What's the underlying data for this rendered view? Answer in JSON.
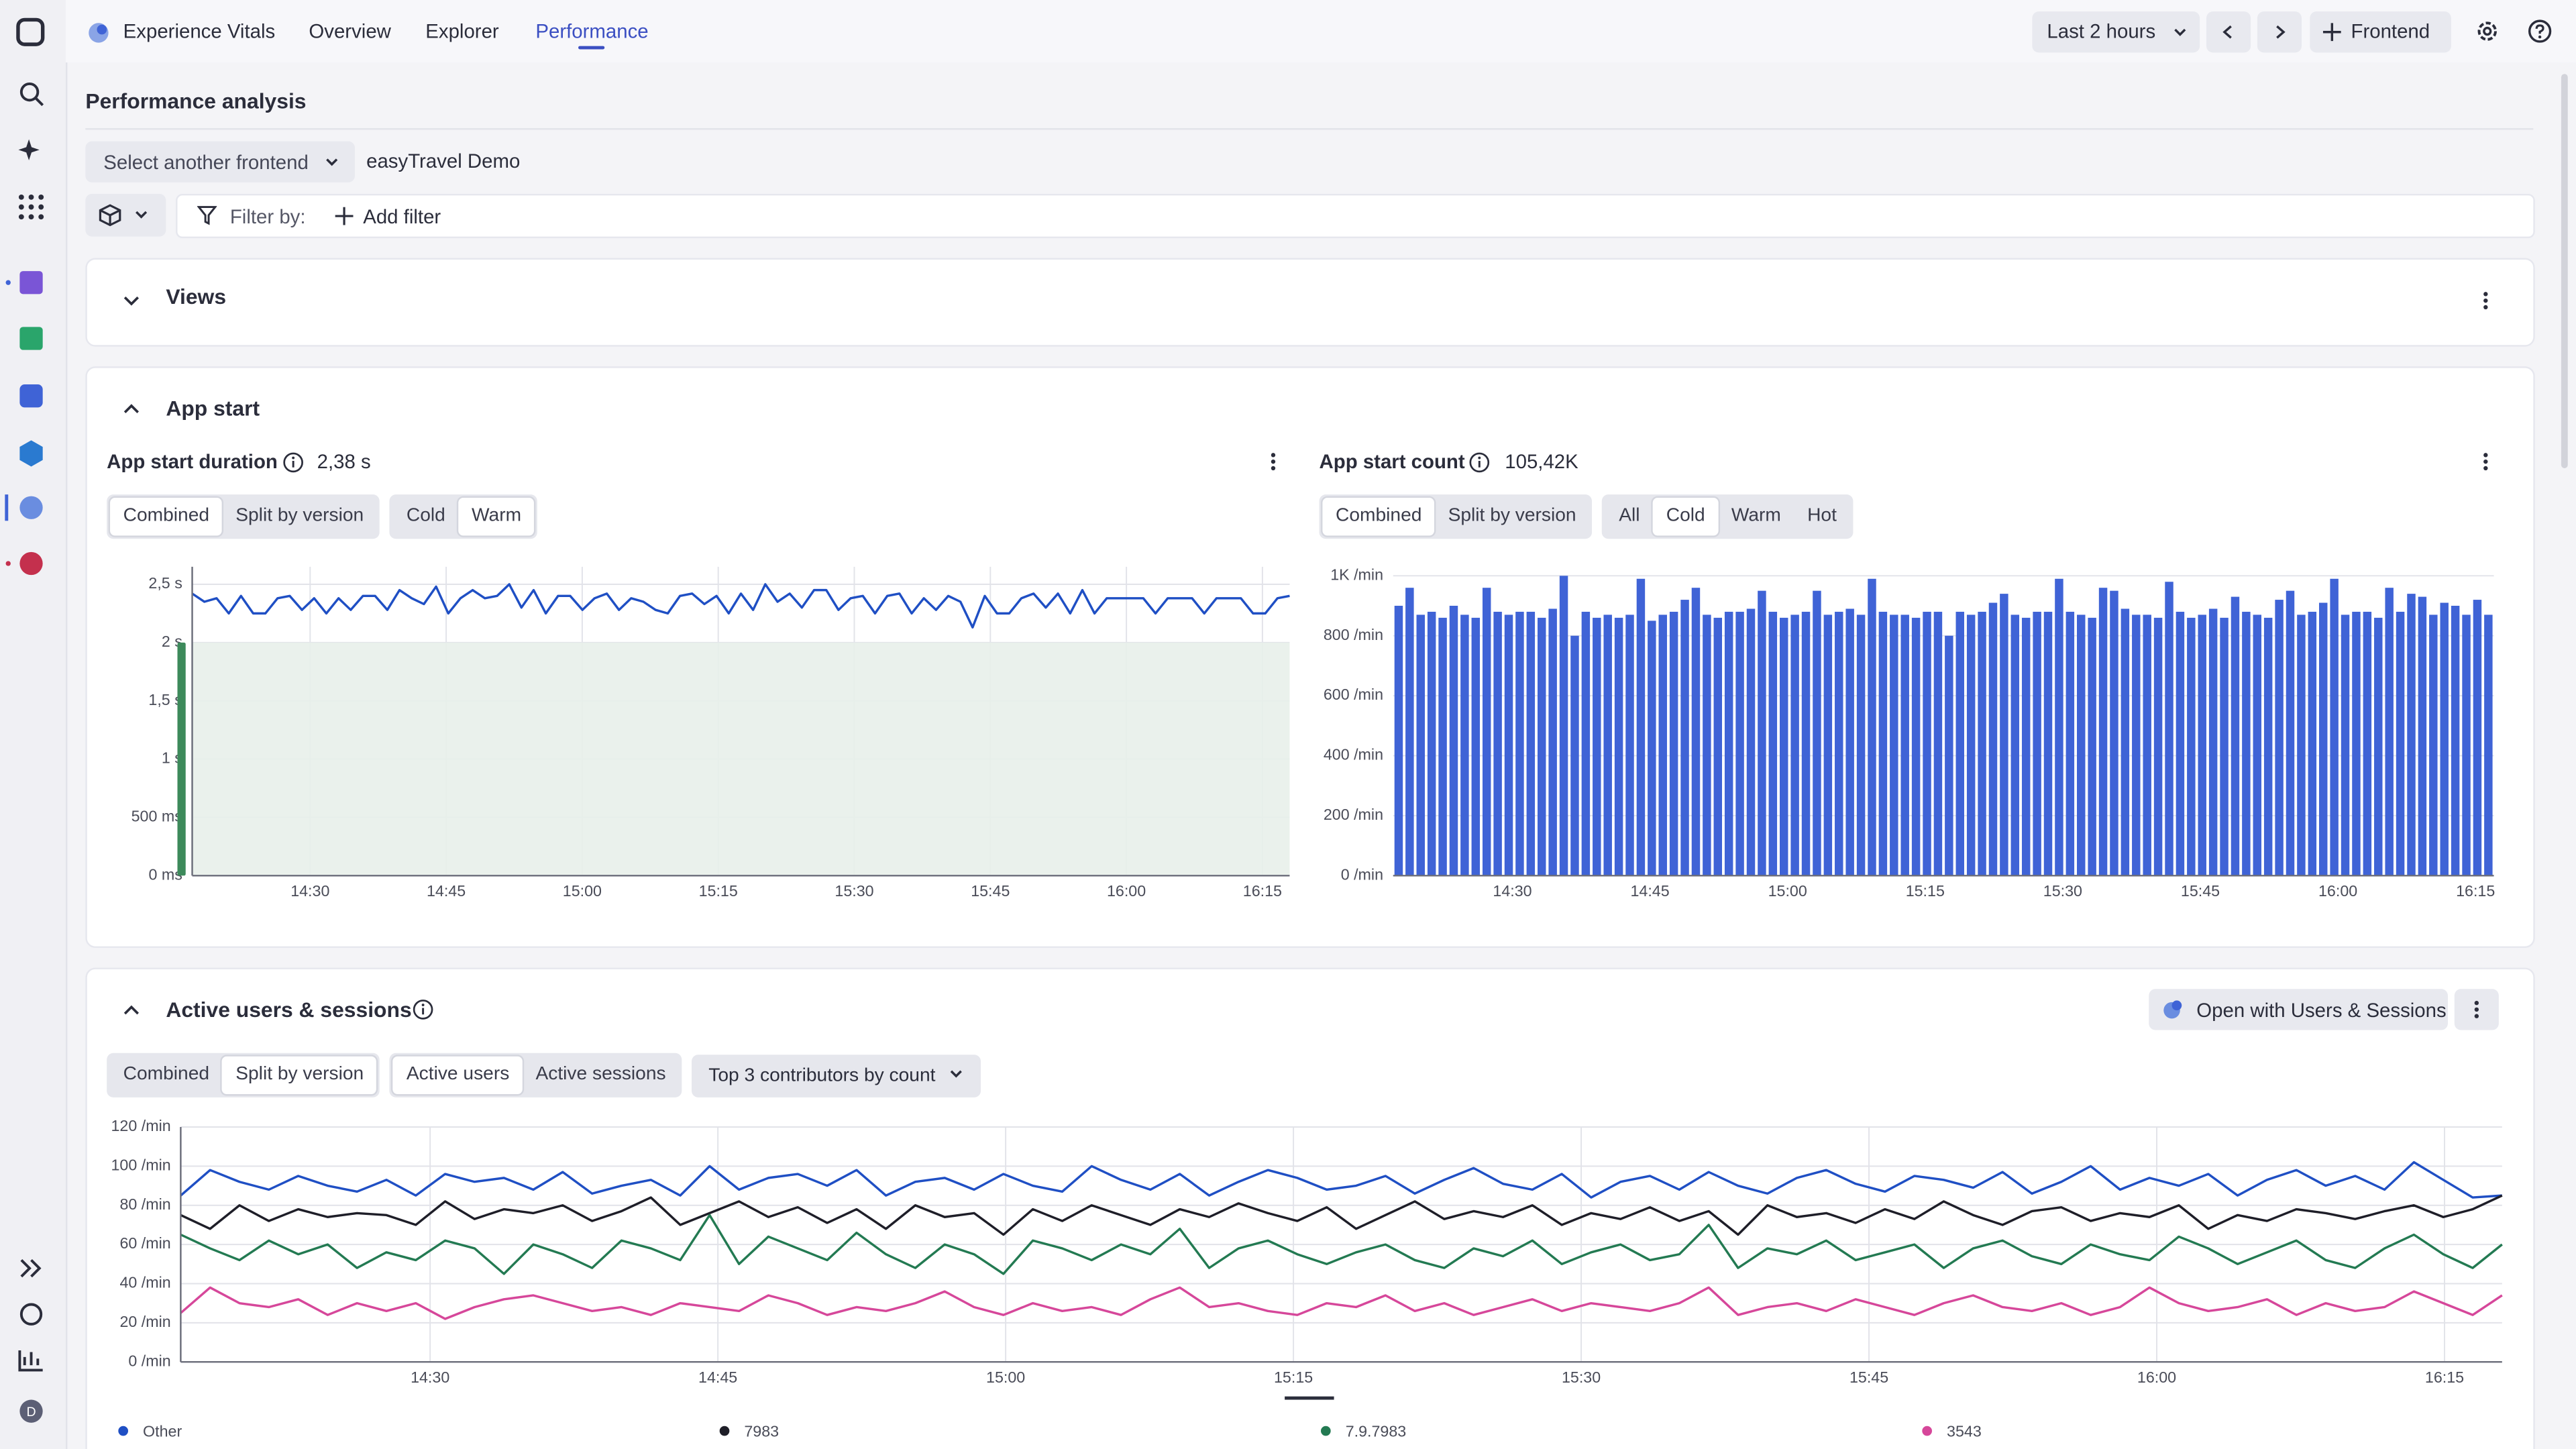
{
  "app": {
    "name": "Experience Vitals",
    "tabs": [
      "Overview",
      "Explorer",
      "Performance"
    ],
    "active_tab": 2,
    "timeframe": "Last 2 hours",
    "frontend_button": "Frontend",
    "user_initial": "D"
  },
  "page": {
    "title": "Performance analysis",
    "select": "Select another frontend",
    "frontend": "easyTravel Demo",
    "filter_label": "Filter by:",
    "add_filter": "Add filter"
  },
  "sections": {
    "views": "Views",
    "app_start": "App start",
    "open_button": "Open with Users & Sessions"
  },
  "chart_data": [
    {
      "type": "line",
      "title": "App start duration",
      "summary": "2,38 s",
      "controls": [
        {
          "options": [
            "Combined",
            "Split by version"
          ],
          "selected": 0
        },
        {
          "options": [
            "Cold",
            "Warm"
          ],
          "selected": 1
        }
      ],
      "color": "#1f4fc4",
      "target_range": [
        0,
        2
      ],
      "grid": true,
      "vertical_grid": true,
      "xlim": [
        "14:17",
        "16:18"
      ],
      "xticks": [
        "14:30",
        "14:45",
        "15:00",
        "15:15",
        "15:30",
        "15:45",
        "16:00",
        "16:15"
      ],
      "ylim": [
        0,
        2.65
      ],
      "yticks": [
        {
          "value": 0,
          "label": "0 ms"
        },
        {
          "value": 0.5,
          "label": "500 ms"
        },
        {
          "value": 1,
          "label": "1 s"
        },
        {
          "value": 1.5,
          "label": "1,5 s"
        },
        {
          "value": 2,
          "label": "2 s"
        },
        {
          "value": 2.5,
          "label": "2,5 s"
        }
      ],
      "values": [
        2.42,
        2.35,
        2.38,
        2.25,
        2.4,
        2.25,
        2.25,
        2.38,
        2.4,
        2.28,
        2.38,
        2.25,
        2.38,
        2.28,
        2.4,
        2.4,
        2.28,
        2.45,
        2.38,
        2.33,
        2.48,
        2.25,
        2.38,
        2.45,
        2.38,
        2.4,
        2.5,
        2.3,
        2.45,
        2.25,
        2.4,
        2.4,
        2.28,
        2.38,
        2.42,
        2.28,
        2.38,
        2.35,
        2.28,
        2.25,
        2.4,
        2.42,
        2.33,
        2.4,
        2.25,
        2.42,
        2.28,
        2.5,
        2.35,
        2.42,
        2.3,
        2.45,
        2.45,
        2.28,
        2.38,
        2.4,
        2.25,
        2.4,
        2.42,
        2.25,
        2.38,
        2.28,
        2.4,
        2.35,
        2.13,
        2.4,
        2.25,
        2.25,
        2.38,
        2.42,
        2.3,
        2.42,
        2.25,
        2.45,
        2.25,
        2.38,
        2.38,
        2.38,
        2.38,
        2.25,
        2.38,
        2.38,
        2.38,
        2.25,
        2.38,
        2.38,
        2.38,
        2.25,
        2.25,
        2.38,
        2.4
      ]
    },
    {
      "type": "bar",
      "title": "App start count",
      "summary": "105,42K",
      "controls": [
        {
          "options": [
            "Combined",
            "Split by version"
          ],
          "selected": 0
        },
        {
          "options": [
            "All",
            "Cold",
            "Warm",
            "Hot"
          ],
          "selected": 1
        }
      ],
      "color": "#3f63d6",
      "grid": true,
      "vertical_grid": false,
      "xlim": [
        "14:17",
        "16:17"
      ],
      "xticks": [
        "14:30",
        "14:45",
        "15:00",
        "15:15",
        "15:30",
        "15:45",
        "16:00",
        "16:15"
      ],
      "ylim": [
        0,
        1030
      ],
      "yticks": [
        {
          "value": 0,
          "label": "0 /min"
        },
        {
          "value": 200,
          "label": "200 /min"
        },
        {
          "value": 400,
          "label": "400 /min"
        },
        {
          "value": 600,
          "label": "600 /min"
        },
        {
          "value": 800,
          "label": "800 /min"
        },
        {
          "value": 1000,
          "label": "1K /min"
        }
      ],
      "values": [
        900,
        960,
        870,
        880,
        860,
        900,
        870,
        860,
        960,
        880,
        870,
        880,
        880,
        860,
        890,
        1000,
        800,
        880,
        860,
        870,
        860,
        870,
        990,
        850,
        870,
        880,
        920,
        960,
        870,
        860,
        880,
        880,
        890,
        950,
        880,
        860,
        870,
        880,
        950,
        870,
        880,
        890,
        870,
        990,
        880,
        870,
        870,
        860,
        880,
        880,
        800,
        880,
        870,
        880,
        910,
        940,
        870,
        860,
        880,
        880,
        990,
        880,
        870,
        860,
        960,
        950,
        890,
        870,
        870,
        860,
        980,
        880,
        860,
        870,
        890,
        860,
        930,
        880,
        870,
        860,
        920,
        950,
        870,
        880,
        910,
        990,
        870,
        880,
        880,
        860,
        960,
        880,
        940,
        930,
        870,
        910,
        900,
        870,
        920,
        870
      ]
    },
    {
      "type": "line",
      "title": "Active users & sessions",
      "controls": [
        {
          "options": [
            "Combined",
            "Split by version"
          ],
          "selected": 1
        },
        {
          "options": [
            "Active users",
            "Active sessions"
          ],
          "selected": 0
        }
      ],
      "dropdown": "Top 3 contributors by count",
      "grid": true,
      "vertical_grid": true,
      "xlim": [
        "14:17",
        "16:18"
      ],
      "xticks": [
        "14:30",
        "14:45",
        "15:00",
        "15:15",
        "15:30",
        "15:45",
        "16:00",
        "16:15"
      ],
      "ylim": [
        0,
        120
      ],
      "yticks": [
        {
          "value": 0,
          "label": "0 /min"
        },
        {
          "value": 20,
          "label": "20 /min"
        },
        {
          "value": 40,
          "label": "40 /min"
        },
        {
          "value": 60,
          "label": "60 /min"
        },
        {
          "value": 80,
          "label": "80 /min"
        },
        {
          "value": 100,
          "label": "100 /min"
        },
        {
          "value": 120,
          "label": "120 /min"
        }
      ],
      "series": [
        {
          "name": "Other",
          "color": "#1f4fc4",
          "values": [
            85,
            98,
            92,
            88,
            95,
            90,
            87,
            93,
            85,
            96,
            92,
            94,
            88,
            97,
            86,
            90,
            93,
            85,
            100,
            88,
            94,
            96,
            90,
            98,
            85,
            92,
            94,
            88,
            96,
            90,
            87,
            100,
            93,
            88,
            96,
            85,
            92,
            98,
            94,
            88,
            90,
            95,
            86,
            93,
            99,
            91,
            88,
            96,
            84,
            92,
            95,
            88,
            97,
            90,
            86,
            94,
            98,
            91,
            87,
            95,
            93,
            89,
            97,
            86,
            92,
            100,
            88,
            94,
            90,
            96,
            85,
            93,
            98,
            90,
            95,
            88,
            102,
            93,
            84,
            85
          ]
        },
        {
          "name": "7983",
          "color": "#1e1e28",
          "values": [
            75,
            68,
            80,
            72,
            78,
            74,
            76,
            75,
            70,
            82,
            73,
            78,
            76,
            80,
            72,
            77,
            84,
            70,
            76,
            82,
            74,
            79,
            71,
            78,
            68,
            80,
            74,
            76,
            65,
            78,
            72,
            80,
            75,
            70,
            78,
            74,
            81,
            76,
            72,
            79,
            68,
            75,
            82,
            73,
            77,
            74,
            80,
            70,
            76,
            73,
            79,
            72,
            77,
            65,
            80,
            74,
            76,
            71,
            78,
            73,
            82,
            75,
            70,
            77,
            79,
            72,
            76,
            74,
            80,
            68,
            75,
            72,
            78,
            76,
            73,
            77,
            80,
            74,
            78,
            85
          ]
        },
        {
          "name": "7.9.7983",
          "color": "#237a52",
          "values": [
            65,
            58,
            52,
            62,
            55,
            60,
            48,
            56,
            52,
            62,
            58,
            45,
            60,
            55,
            48,
            62,
            58,
            52,
            75,
            50,
            64,
            58,
            52,
            66,
            55,
            48,
            60,
            55,
            45,
            62,
            58,
            52,
            60,
            55,
            68,
            48,
            58,
            62,
            55,
            50,
            56,
            60,
            52,
            48,
            58,
            54,
            62,
            50,
            56,
            60,
            52,
            55,
            70,
            48,
            58,
            55,
            62,
            52,
            56,
            60,
            48,
            58,
            62,
            54,
            50,
            60,
            55,
            52,
            64,
            58,
            50,
            56,
            62,
            52,
            48,
            58,
            65,
            55,
            48,
            60
          ]
        },
        {
          "name": "3543",
          "color": "#d6479a",
          "values": [
            25,
            38,
            30,
            28,
            32,
            24,
            30,
            26,
            30,
            22,
            28,
            32,
            34,
            30,
            26,
            28,
            24,
            30,
            28,
            26,
            34,
            30,
            24,
            28,
            26,
            30,
            36,
            28,
            24,
            30,
            26,
            28,
            24,
            32,
            38,
            28,
            30,
            26,
            24,
            30,
            28,
            34,
            26,
            30,
            24,
            28,
            32,
            26,
            30,
            28,
            26,
            30,
            38,
            24,
            28,
            30,
            26,
            32,
            28,
            24,
            30,
            34,
            28,
            26,
            30,
            24,
            28,
            38,
            30,
            26,
            28,
            32,
            24,
            30,
            26,
            28,
            36,
            30,
            24,
            34
          ]
        }
      ]
    }
  ]
}
